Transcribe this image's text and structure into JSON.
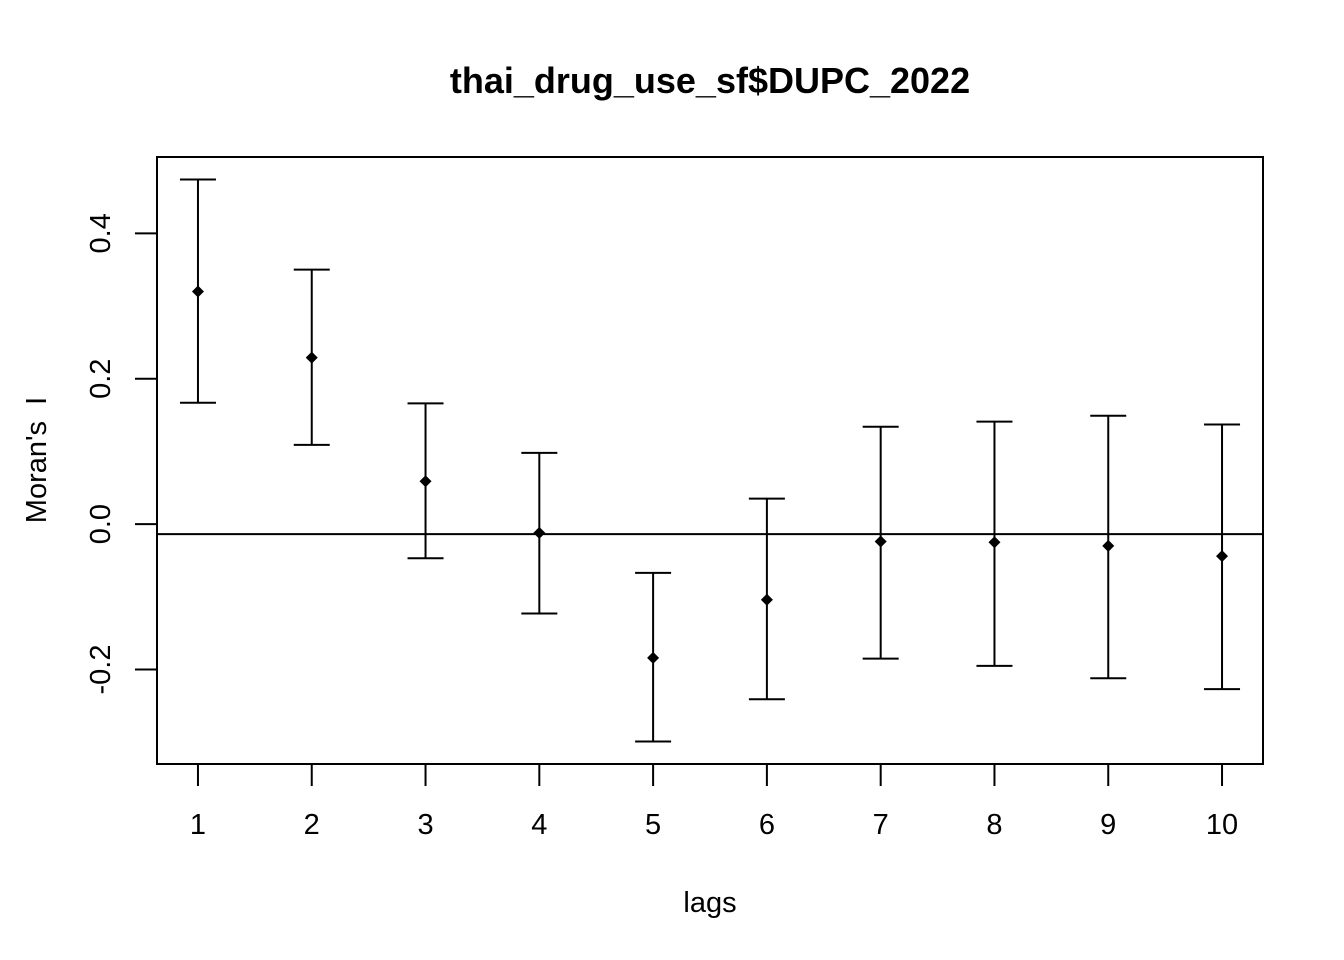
{
  "chart_data": {
    "type": "scatter",
    "title": "thai_drug_use_sf$DUPC_2022",
    "xlabel": "lags",
    "ylabel": "Moran's  I",
    "x": [
      1,
      2,
      3,
      4,
      5,
      6,
      7,
      8,
      9,
      10
    ],
    "x_tick_labels": [
      "1",
      "2",
      "3",
      "4",
      "5",
      "6",
      "7",
      "8",
      "9",
      "10"
    ],
    "y_ticks": [
      -0.2,
      0.0,
      0.2,
      0.4
    ],
    "y_tick_labels": [
      "-0.2",
      "0.0",
      "0.2",
      "0.4"
    ],
    "xlim": [
      0.64,
      10.36
    ],
    "ylim": [
      -0.33,
      0.505
    ],
    "series": [
      {
        "values": [
          0.32,
          0.229,
          0.059,
          -0.012,
          -0.184,
          -0.104,
          -0.024,
          -0.025,
          -0.03,
          -0.044
        ],
        "lower": [
          0.167,
          0.109,
          -0.047,
          -0.123,
          -0.299,
          -0.241,
          -0.185,
          -0.195,
          -0.212,
          -0.227
        ],
        "upper": [
          0.474,
          0.35,
          0.166,
          0.098,
          -0.067,
          0.035,
          0.134,
          0.141,
          0.149,
          0.137
        ]
      }
    ],
    "reference_line": -0.0137,
    "grid": false,
    "legend": "none"
  }
}
